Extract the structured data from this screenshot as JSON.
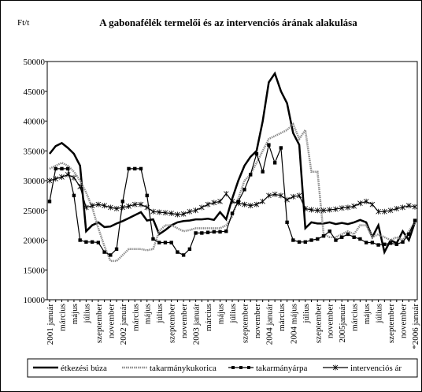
{
  "chart_data": {
    "type": "line",
    "title": "A gabonafélék termelői és az intervenciós árának alakulása",
    "y_label": "Ft/t",
    "categories": [
      "2001 január",
      null,
      "március",
      null,
      "május",
      null,
      "július",
      null,
      "szeptember",
      null,
      "november",
      null,
      "2002 január",
      null,
      "március",
      null,
      "május",
      null,
      "július",
      null,
      "szeptember",
      null,
      "november",
      null,
      "2003 január",
      null,
      "március",
      null,
      "május",
      null,
      "július",
      null,
      "szeptember",
      null,
      "november",
      null,
      "2004 január",
      null,
      "március",
      null,
      "2004 május",
      null,
      "július",
      null,
      "szeptember",
      null,
      "november",
      null,
      "2005január",
      null,
      "március",
      null,
      "május",
      null,
      "július",
      null,
      "szeptember",
      null,
      "november",
      null,
      "*2006 január"
    ],
    "series": [
      {
        "name": "étkezési búza",
        "color": "#000000",
        "style": "solid",
        "marker": "none",
        "values": [
          34500,
          35800,
          36300,
          35500,
          34500,
          32500,
          21500,
          22500,
          23000,
          22200,
          22300,
          22800,
          23200,
          23700,
          24200,
          24700,
          23300,
          23500,
          21000,
          21700,
          22500,
          23000,
          23200,
          23300,
          23500,
          23500,
          23600,
          23400,
          24700,
          23500,
          27000,
          30000,
          32500,
          34000,
          35000,
          40000,
          46500,
          48000,
          45000,
          43000,
          38000,
          36000,
          22000,
          23000,
          22800,
          22800,
          23000,
          22700,
          22900,
          22700,
          23000,
          23400,
          23000,
          20500,
          22500,
          18000,
          20000,
          19500,
          21500,
          20000,
          23000
        ]
      },
      {
        "name": "takarmánykukorica",
        "color": "#8c8c8c",
        "style": "dotted",
        "marker": "none",
        "values": [
          32000,
          32500,
          33000,
          32500,
          31500,
          30000,
          28000,
          25500,
          22000,
          19000,
          16500,
          16500,
          17500,
          18500,
          18500,
          18500,
          18300,
          18500,
          21500,
          22500,
          22500,
          22000,
          21500,
          21700,
          22000,
          22000,
          22000,
          22000,
          22000,
          22500,
          24000,
          27000,
          30000,
          31000,
          33000,
          35000,
          37000,
          37500,
          38000,
          38500,
          39500,
          37000,
          38500,
          31500,
          31500,
          21000,
          20500,
          20500,
          21000,
          21500,
          21000,
          22500,
          22500,
          20500,
          21000,
          20500,
          20000,
          20500,
          20000,
          21500,
          23000
        ]
      },
      {
        "name": "takarmányárpa",
        "color": "#000000",
        "style": "solid",
        "marker": "square",
        "values": [
          26500,
          32000,
          32000,
          32000,
          27500,
          20000,
          19700,
          19700,
          19600,
          18000,
          17500,
          18500,
          26500,
          32000,
          32000,
          32000,
          27500,
          20200,
          19600,
          19600,
          19600,
          18000,
          17500,
          18500,
          21200,
          21200,
          21300,
          21400,
          21400,
          21500,
          24500,
          26500,
          28500,
          31000,
          34500,
          31500,
          36000,
          33000,
          35500,
          23000,
          20000,
          19700,
          19700,
          20000,
          20200,
          20700,
          21500,
          20000,
          20500,
          21000,
          20500,
          20200,
          19600,
          19600,
          19200,
          19300,
          19500,
          19300,
          19700,
          21000,
          23300
        ]
      },
      {
        "name": "intervenciós ár",
        "color": "#000000",
        "style": "solid",
        "marker": "asterisk",
        "values": [
          30000,
          30300,
          30600,
          31000,
          30500,
          29000,
          25500,
          25800,
          26000,
          25800,
          25500,
          25300,
          25500,
          25700,
          26000,
          26000,
          25500,
          24800,
          24700,
          24600,
          24500,
          24300,
          24400,
          24800,
          25000,
          25500,
          26000,
          26300,
          26500,
          27800,
          26500,
          26200,
          26000,
          25800,
          26000,
          26500,
          27500,
          27700,
          27500,
          26800,
          27300,
          27500,
          25300,
          25100,
          25000,
          25000,
          25100,
          25200,
          25400,
          25500,
          25700,
          26200,
          26500,
          26000,
          24800,
          24800,
          25000,
          25300,
          25500,
          25800,
          25600
        ]
      }
    ],
    "ylim": [
      10000,
      50000
    ],
    "yticks": [
      10000,
      15000,
      20000,
      25000,
      30000,
      35000,
      40000,
      45000,
      50000
    ],
    "grid": false,
    "legend": "bottom"
  }
}
